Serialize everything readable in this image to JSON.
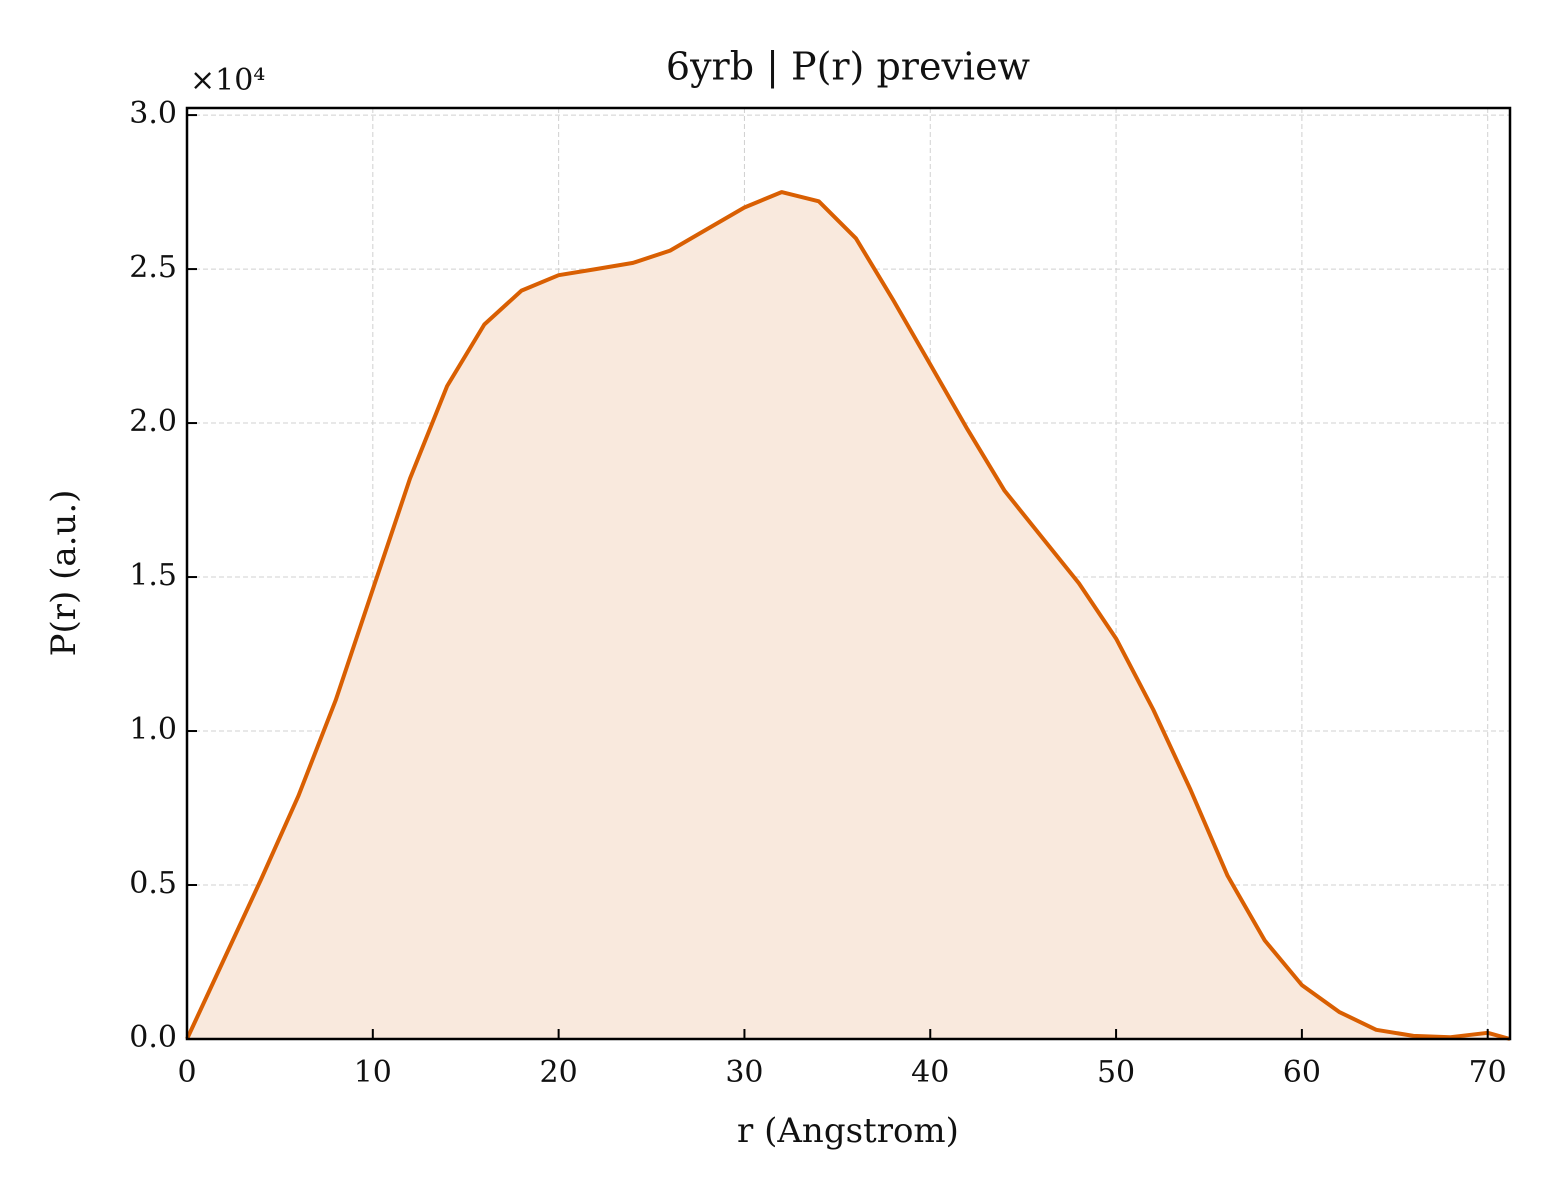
{
  "chart_data": {
    "type": "line",
    "title": "6yrb | P(r) preview",
    "x_label": "r (Angstrom)",
    "y_label": "P(r) (a.u.)",
    "y_offset_label": "×10⁴",
    "x": [
      0,
      2,
      4,
      6,
      8,
      10,
      12,
      14,
      16,
      18,
      20,
      22,
      24,
      26,
      28,
      30,
      32,
      34,
      36,
      38,
      40,
      42,
      44,
      46,
      48,
      50,
      52,
      54,
      56,
      58,
      60,
      62,
      64,
      66,
      68,
      70,
      71.2
    ],
    "series": [
      {
        "color": "#d95f02",
        "fill": "#f9e9dd",
        "values": [
          0,
          2600,
          5200,
          7900,
          11000,
          14600,
          18200,
          21200,
          23200,
          24300,
          24800,
          25000,
          25200,
          25600,
          26300,
          27000,
          27500,
          27200,
          26000,
          24000,
          21900,
          19800,
          17800,
          16300,
          14800,
          13000,
          10700,
          8100,
          5300,
          3200,
          1750,
          880,
          300,
          100,
          60,
          200,
          0
        ]
      }
    ],
    "xlim": [
      0,
      71.2
    ],
    "ylim": [
      0,
      30230
    ],
    "xticks": [
      0,
      10,
      20,
      30,
      40,
      50,
      60,
      70
    ],
    "yticks": [
      {
        "value": 0,
        "label": "0.0"
      },
      {
        "value": 5000,
        "label": "0.5"
      },
      {
        "value": 10000,
        "label": "1.0"
      },
      {
        "value": 15000,
        "label": "1.5"
      },
      {
        "value": 20000,
        "label": "2.0"
      },
      {
        "value": 25000,
        "label": "2.5"
      },
      {
        "value": 30000,
        "label": "3.0"
      }
    ],
    "grid": true
  }
}
